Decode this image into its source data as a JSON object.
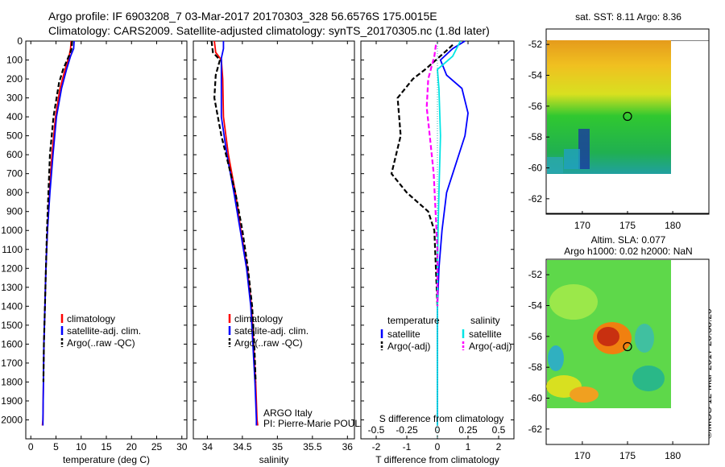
{
  "title_line1": "Argo profile: IF 6903208_7 03-Mar-2017 20170303_328 56.6576S 175.0015E",
  "title_line2": "Climatology: CARS2009. Satellite-adjusted climatology: synTS_20170305.nc (1.8d later)",
  "credit": "©IMOS 12-Mar-2017 20:38:26",
  "colors": {
    "climatology": "#ff0000",
    "satellite": "#0000ff",
    "argo": "#000000",
    "sal_sat": "#00e5e5",
    "sal_argo": "#ff00ff"
  },
  "chart_data": [
    {
      "type": "line",
      "xlabel": "temperature (deg C)",
      "ylabel": "",
      "xlim": [
        -1,
        31
      ],
      "ylim": [
        2100,
        0
      ],
      "xticks": [
        "0",
        "5",
        "10",
        "15",
        "20",
        "25",
        "30"
      ],
      "yticks": [
        "0",
        "100",
        "200",
        "300",
        "400",
        "500",
        "600",
        "700",
        "800",
        "900",
        "1000",
        "1100",
        "1200",
        "1300",
        "1400",
        "1500",
        "1600",
        "1700",
        "1800",
        "1900",
        "2000"
      ],
      "legend": [
        "climatology",
        "satellite-adj. clim.",
        "Argo(..raw -QC)"
      ],
      "series": [
        {
          "name": "climatology",
          "color": "#ff0000",
          "dash": "solid",
          "points": [
            [
              8.0,
              0
            ],
            [
              7.9,
              40
            ],
            [
              7.6,
              80
            ],
            [
              6.8,
              150
            ],
            [
              5.8,
              250
            ],
            [
              4.9,
              400
            ],
            [
              4.2,
              600
            ],
            [
              3.7,
              800
            ],
            [
              3.3,
              1000
            ],
            [
              3.0,
              1200
            ],
            [
              2.8,
              1400
            ],
            [
              2.6,
              1600
            ],
            [
              2.5,
              1800
            ],
            [
              2.4,
              2000
            ],
            [
              2.3,
              2030
            ]
          ]
        },
        {
          "name": "satellite-adj. clim.",
          "color": "#0000ff",
          "dash": "solid",
          "points": [
            [
              8.6,
              0
            ],
            [
              8.5,
              40
            ],
            [
              7.9,
              80
            ],
            [
              7.1,
              150
            ],
            [
              6.1,
              250
            ],
            [
              5.1,
              400
            ],
            [
              4.4,
              600
            ],
            [
              3.8,
              800
            ],
            [
              3.3,
              1000
            ],
            [
              3.0,
              1200
            ],
            [
              2.8,
              1400
            ],
            [
              2.6,
              1600
            ],
            [
              2.5,
              1800
            ],
            [
              2.4,
              2000
            ],
            [
              2.4,
              2030
            ]
          ]
        },
        {
          "name": "Argo(..raw -QC)",
          "color": "#000000",
          "dash": "dash",
          "points": [
            [
              8.2,
              0
            ],
            [
              8.1,
              40
            ],
            [
              7.7,
              70
            ],
            [
              6.4,
              150
            ],
            [
              5.6,
              220
            ],
            [
              4.5,
              400
            ],
            [
              3.8,
              600
            ],
            [
              3.5,
              800
            ],
            [
              3.2,
              1000
            ],
            [
              3.0,
              1200
            ],
            [
              2.8,
              1400
            ],
            [
              2.6,
              1600
            ],
            [
              2.5,
              1800
            ]
          ]
        }
      ]
    },
    {
      "type": "line",
      "xlabel": "salinity",
      "ylabel": "",
      "xlim": [
        33.8,
        36.1
      ],
      "ylim": [
        2100,
        0
      ],
      "xticks": [
        "34",
        "34.5",
        "35",
        "35.5",
        "36"
      ],
      "legend": [
        "climatology",
        "satellite-adj. clim.",
        "Argo(..raw -QC)"
      ],
      "annotation": [
        "ARGO Italy",
        "PI: Pierre-Marie POULAIN"
      ],
      "series": [
        {
          "name": "climatology",
          "color": "#ff0000",
          "dash": "solid",
          "points": [
            [
              34.1,
              0
            ],
            [
              34.12,
              60
            ],
            [
              34.2,
              100
            ],
            [
              34.22,
              200
            ],
            [
              34.23,
              400
            ],
            [
              34.3,
              600
            ],
            [
              34.4,
              800
            ],
            [
              34.48,
              1000
            ],
            [
              34.57,
              1200
            ],
            [
              34.63,
              1400
            ],
            [
              34.66,
              1600
            ],
            [
              34.69,
              1800
            ],
            [
              34.71,
              2000
            ],
            [
              34.72,
              2030
            ]
          ]
        },
        {
          "name": "satellite-adj. clim.",
          "color": "#0000ff",
          "dash": "solid",
          "points": [
            [
              34.23,
              0
            ],
            [
              34.23,
              40
            ],
            [
              34.2,
              90
            ],
            [
              34.2,
              200
            ],
            [
              34.2,
              400
            ],
            [
              34.28,
              600
            ],
            [
              34.38,
              800
            ],
            [
              34.47,
              1000
            ],
            [
              34.56,
              1200
            ],
            [
              34.62,
              1400
            ],
            [
              34.65,
              1600
            ],
            [
              34.68,
              1800
            ],
            [
              34.7,
              2000
            ],
            [
              34.7,
              2030
            ]
          ]
        },
        {
          "name": "Argo(..raw -QC)",
          "color": "#000000",
          "dash": "dash",
          "points": [
            [
              34.06,
              0
            ],
            [
              34.08,
              60
            ],
            [
              34.18,
              100
            ],
            [
              34.12,
              180
            ],
            [
              34.1,
              300
            ],
            [
              34.2,
              500
            ],
            [
              34.3,
              650
            ],
            [
              34.4,
              800
            ],
            [
              34.5,
              1000
            ],
            [
              34.58,
              1200
            ],
            [
              34.64,
              1400
            ],
            [
              34.67,
              1600
            ],
            [
              34.69,
              1800
            ]
          ]
        }
      ]
    },
    {
      "type": "line",
      "xlabel": "T difference from climatology",
      "title": "S difference from climatology",
      "xlim": [
        -2.5,
        2.5
      ],
      "ylim": [
        2100,
        0
      ],
      "xticks": [
        "-2",
        "-1",
        "0",
        "1",
        "2"
      ],
      "s_xticks": [
        "-0.5",
        "-0.25",
        "0",
        "0.25",
        "0.5"
      ],
      "legend_heads": [
        "temperature",
        "salinity"
      ],
      "legend": [
        "satellite",
        "Argo(-adj)",
        "satellite",
        "Argo(-adj)"
      ],
      "series": [
        {
          "name": "satellite",
          "color": "#0000ff",
          "dash": "solid",
          "points": [
            [
              0.9,
              0
            ],
            [
              0.5,
              40
            ],
            [
              0.1,
              100
            ],
            [
              0.3,
              180
            ],
            [
              0.8,
              250
            ],
            [
              1.0,
              380
            ],
            [
              0.9,
              500
            ],
            [
              0.7,
              600
            ],
            [
              0.5,
              700
            ],
            [
              0.3,
              800
            ],
            [
              0.15,
              1000
            ],
            [
              0.05,
              1200
            ],
            [
              0.0,
              1400
            ],
            [
              0.0,
              2030
            ]
          ]
        },
        {
          "name": "Argo(-adj)",
          "color": "#000000",
          "dash": "dash",
          "points": [
            [
              0.5,
              20
            ],
            [
              0.3,
              50
            ],
            [
              -0.4,
              150
            ],
            [
              -0.8,
              200
            ],
            [
              -1.3,
              300
            ],
            [
              -1.2,
              500
            ],
            [
              -1.5,
              700
            ],
            [
              -1.0,
              800
            ],
            [
              -0.3,
              900
            ],
            [
              -0.1,
              1000
            ],
            [
              -0.05,
              1200
            ],
            [
              0.0,
              1400
            ]
          ]
        },
        {
          "name": "satellite",
          "color": "#00e5e5",
          "dash": "solid",
          "points": [
            [
              0.75,
              0
            ],
            [
              0.5,
              80
            ],
            [
              0.0,
              150
            ],
            [
              0.05,
              250
            ],
            [
              0.1,
              500
            ],
            [
              0.05,
              800
            ],
            [
              0.02,
              1000
            ],
            [
              0.0,
              1200
            ],
            [
              0.0,
              2030
            ]
          ]
        },
        {
          "name": "Argo(-adj)",
          "color": "#ff00ff",
          "dash": "dash",
          "points": [
            [
              -0.05,
              20
            ],
            [
              -0.1,
              80
            ],
            [
              -0.3,
              200
            ],
            [
              -0.35,
              350
            ],
            [
              -0.25,
              500
            ],
            [
              -0.12,
              700
            ],
            [
              -0.06,
              900
            ],
            [
              0.0,
              1100
            ],
            [
              0.0,
              1400
            ]
          ]
        }
      ]
    },
    {
      "type": "heatmap",
      "title": "sat. SST: 8.11  Argo: 8.36",
      "xlim": [
        166,
        184
      ],
      "ylim": [
        -63,
        -51
      ],
      "xticks": [
        "170",
        "175",
        "180"
      ],
      "yticks": [
        "-52",
        "-54",
        "-56",
        "-58",
        "-60",
        "-62"
      ],
      "marker": [
        175.0,
        -56.66
      ]
    },
    {
      "type": "heatmap",
      "title_lines": [
        "Altim. SLA: 0.077",
        "Argo h1000: 0.02 h2000: NaN"
      ],
      "xlim": [
        166,
        184
      ],
      "ylim": [
        -63,
        -51
      ],
      "xticks": [
        "170",
        "175",
        "180"
      ],
      "yticks": [
        "-52",
        "-54",
        "-56",
        "-58",
        "-60",
        "-62"
      ],
      "marker": [
        175.0,
        -56.66
      ]
    }
  ]
}
